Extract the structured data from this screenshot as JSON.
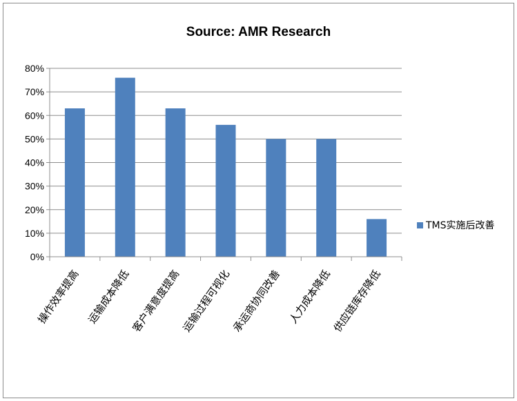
{
  "chart_data": {
    "type": "bar",
    "title": "Source: AMR Research",
    "categories": [
      "操作效率提高",
      "运输成本降低",
      "客户满意度提高",
      "运输过程可视化",
      "承运商协同改善",
      "人力成本降低",
      "供应链库存降低"
    ],
    "series": [
      {
        "name": "TMS实施后改善",
        "values": [
          63,
          76,
          63,
          56,
          50,
          50,
          16
        ],
        "color": "#4f81bd"
      }
    ],
    "ylim": [
      0,
      80
    ],
    "yticks": [
      0,
      10,
      20,
      30,
      40,
      50,
      60,
      70,
      80
    ],
    "ytick_labels": [
      "0%",
      "10%",
      "20%",
      "30%",
      "40%",
      "50%",
      "60%",
      "70%",
      "80%"
    ],
    "grid": true,
    "legend": "right"
  }
}
